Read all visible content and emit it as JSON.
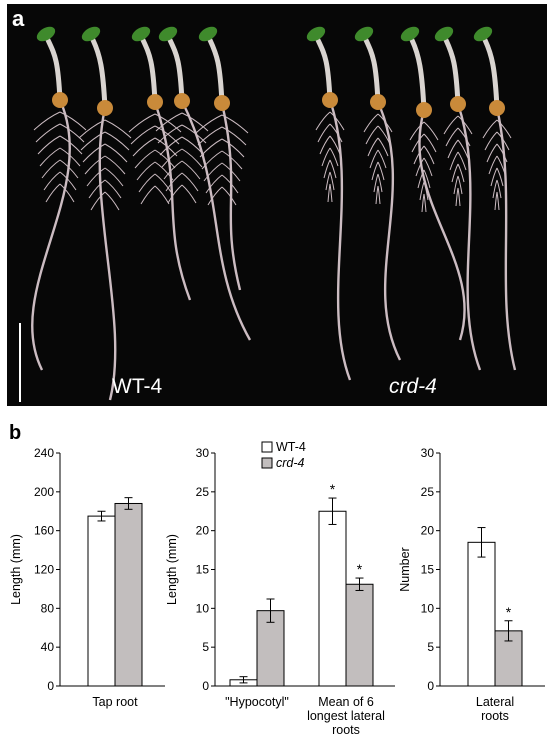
{
  "panel_a": {
    "letter": "a",
    "label_left": "WT-4",
    "label_right": "crd-4",
    "colors": {
      "background": "#070707",
      "stem": "#d9d4d0",
      "leaf": "#3f8a2c",
      "seed": "#c98a3a",
      "root": "#ccbcc2"
    }
  },
  "panel_b": {
    "letter": "b"
  },
  "legend": {
    "entries": [
      "WT-4",
      "crd-4"
    ]
  },
  "colors": {
    "wt": "#ffffff",
    "crd": "#c2bebe",
    "axis": "#000000"
  },
  "chart_data": [
    {
      "type": "bar",
      "ylabel": "Length (mm)",
      "ylim": [
        0,
        240
      ],
      "yticks": [
        0,
        40,
        80,
        120,
        160,
        200,
        240
      ],
      "categories": [
        "Tap root"
      ],
      "series": [
        {
          "name": "WT-4",
          "values": [
            175
          ],
          "errors": [
            5
          ]
        },
        {
          "name": "crd-4",
          "values": [
            188
          ],
          "errors": [
            6
          ]
        }
      ],
      "significance": [
        "",
        ""
      ]
    },
    {
      "type": "bar",
      "ylabel": "Length (mm)",
      "ylim": [
        0,
        30
      ],
      "yticks": [
        0,
        5,
        10,
        15,
        20,
        25,
        30
      ],
      "categories": [
        "\"Hypocotyl\"",
        "Mean of 6 longest lateral roots"
      ],
      "category_lines": [
        [
          "\"Hypocotyl\""
        ],
        [
          "Mean of 6",
          "longest lateral",
          "roots"
        ]
      ],
      "series": [
        {
          "name": "WT-4",
          "values": [
            0.8,
            22.5
          ],
          "errors": [
            0.4,
            1.7
          ]
        },
        {
          "name": "crd-4",
          "values": [
            9.7,
            13.1
          ],
          "errors": [
            1.5,
            0.8
          ]
        }
      ],
      "significance": [
        [
          "",
          ""
        ],
        [
          "*",
          "*"
        ]
      ]
    },
    {
      "type": "bar",
      "ylabel": "Number",
      "ylim": [
        0,
        30
      ],
      "yticks": [
        0,
        5,
        10,
        15,
        20,
        25,
        30
      ],
      "categories": [
        "Lateral roots"
      ],
      "category_lines": [
        [
          "Lateral",
          "roots"
        ]
      ],
      "series": [
        {
          "name": "WT-4",
          "values": [
            18.5
          ],
          "errors": [
            1.9
          ]
        },
        {
          "name": "crd-4",
          "values": [
            7.1
          ],
          "errors": [
            1.3
          ]
        }
      ],
      "significance": [
        "",
        "*"
      ]
    }
  ]
}
